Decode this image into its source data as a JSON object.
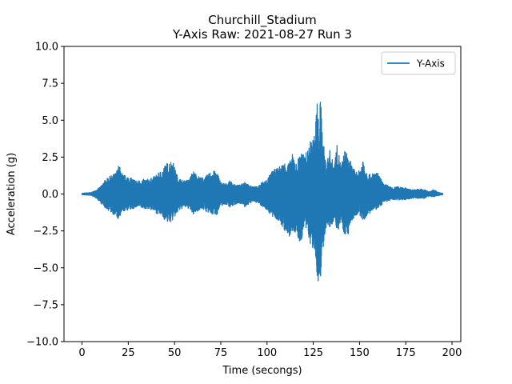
{
  "chart_data": {
    "type": "line",
    "title": "Churchill_Stadium",
    "subtitle": "Y-Axis Raw: 2021-08-27 Run 3",
    "xlabel": "Time (secongs)",
    "ylabel": "Acceleration (g)",
    "xlim": [
      -9.75,
      204.75
    ],
    "ylim": [
      -10.0,
      10.0
    ],
    "xticks": [
      0,
      25,
      50,
      75,
      100,
      125,
      150,
      175,
      200
    ],
    "yticks": [
      -10.0,
      -7.5,
      -5.0,
      -2.5,
      0.0,
      2.5,
      5.0,
      7.5,
      10.0
    ],
    "xtick_labels": [
      "0",
      "25",
      "50",
      "75",
      "100",
      "125",
      "150",
      "175",
      "200"
    ],
    "ytick_labels": [
      "−10.0",
      "−7.5",
      "−5.0",
      "−2.5",
      "0.0",
      "2.5",
      "5.0",
      "7.5",
      "10.0"
    ],
    "grid": false,
    "legend": {
      "position": "top-right",
      "entries": [
        "Y-Axis"
      ]
    },
    "series": [
      {
        "name": "Y-Axis",
        "color": "#1f77b4",
        "envelope": {
          "t": [
            0,
            5,
            8,
            10,
            12,
            15,
            18,
            20,
            22,
            25,
            28,
            30,
            33,
            35,
            38,
            40,
            43,
            45,
            47,
            49,
            50,
            52,
            55,
            58,
            60,
            63,
            65,
            68,
            70,
            73,
            75,
            78,
            80,
            83,
            85,
            88,
            90,
            93,
            95,
            97,
            100,
            103,
            105,
            108,
            110,
            112,
            114,
            116,
            118,
            120,
            122,
            124,
            126,
            127,
            128,
            129,
            130,
            131,
            132,
            133,
            134,
            136,
            138,
            140,
            142,
            144,
            146,
            148,
            150,
            152,
            154,
            156,
            158,
            160,
            163,
            165,
            168,
            170,
            173,
            175,
            178,
            180,
            183,
            185,
            188,
            190,
            193,
            195
          ],
          "upper": [
            0.05,
            0.1,
            0.3,
            0.5,
            0.9,
            1.2,
            1.4,
            2.0,
            1.3,
            1.2,
            1.0,
            0.9,
            1.0,
            1.0,
            1.1,
            1.3,
            1.6,
            2.0,
            2.2,
            2.3,
            1.8,
            1.1,
            0.9,
            1.0,
            1.6,
            1.2,
            1.1,
            1.3,
            1.6,
            1.5,
            0.8,
            0.7,
            0.9,
            0.6,
            0.6,
            0.9,
            0.6,
            0.5,
            0.5,
            0.8,
            1.0,
            1.6,
            1.7,
            2.0,
            2.2,
            2.1,
            2.8,
            2.0,
            3.0,
            2.6,
            3.0,
            3.8,
            4.0,
            6.9,
            4.5,
            6.9,
            3.9,
            3.0,
            2.0,
            2.6,
            3.0,
            2.0,
            3.4,
            1.9,
            3.0,
            2.6,
            1.9,
            1.5,
            1.6,
            2.5,
            1.5,
            1.3,
            1.5,
            1.4,
            0.7,
            0.6,
            0.4,
            0.5,
            0.5,
            0.4,
            0.3,
            0.3,
            0.35,
            0.3,
            0.15,
            0.3,
            0.1,
            0.05
          ],
          "lower": [
            -0.05,
            -0.1,
            -0.3,
            -0.6,
            -0.9,
            -1.2,
            -1.5,
            -1.8,
            -1.2,
            -1.1,
            -1.0,
            -0.9,
            -1.0,
            -1.0,
            -1.1,
            -1.3,
            -1.5,
            -1.8,
            -2.0,
            -1.8,
            -1.6,
            -1.2,
            -0.9,
            -1.0,
            -1.4,
            -1.1,
            -1.0,
            -1.3,
            -1.4,
            -1.4,
            -0.8,
            -0.7,
            -0.9,
            -0.7,
            -0.6,
            -0.9,
            -0.7,
            -0.5,
            -0.6,
            -0.8,
            -1.1,
            -1.6,
            -1.7,
            -2.2,
            -2.6,
            -3.0,
            -2.5,
            -2.8,
            -3.5,
            -2.4,
            -2.6,
            -3.8,
            -4.0,
            -5.5,
            -6.5,
            -5.5,
            -3.9,
            -3.5,
            -2.5,
            -2.2,
            -2.5,
            -1.8,
            -2.6,
            -1.9,
            -2.8,
            -2.7,
            -1.8,
            -1.5,
            -1.5,
            -1.8,
            -1.5,
            -1.3,
            -1.1,
            -1.0,
            -0.6,
            -0.5,
            -0.4,
            -0.4,
            -0.4,
            -0.4,
            -0.3,
            -0.3,
            -0.3,
            -0.3,
            -0.15,
            -0.2,
            -0.1,
            -0.05
          ]
        }
      }
    ]
  }
}
